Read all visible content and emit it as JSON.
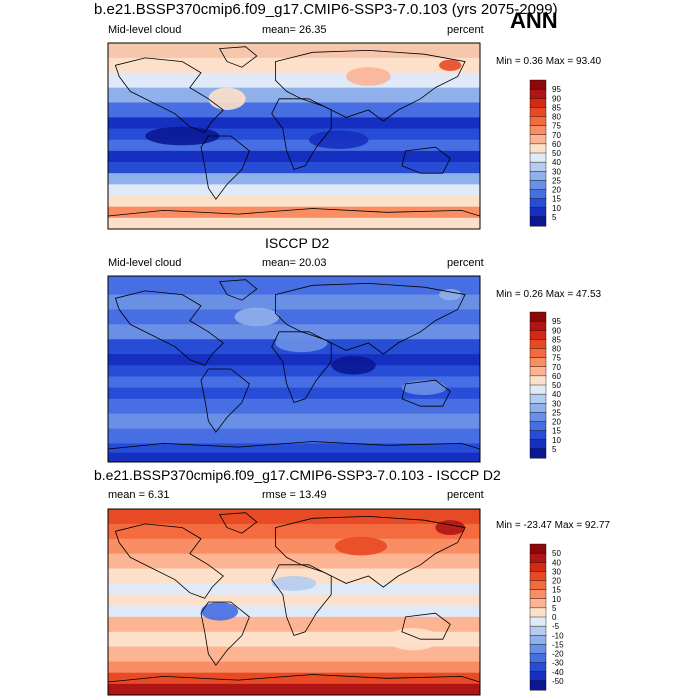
{
  "header": {
    "season": "ANN"
  },
  "chart_data": [
    {
      "type": "heatmap",
      "title": "b.e21.BSSP370cmip6.f09_g17.CMIP6-SSP3-7.0.103 (yrs 2075-2099)",
      "left_label": "Mid-level cloud",
      "stat_text": "mean=  26.35",
      "units": "percent",
      "minmax_text": "Min =   0.36 Max =  93.40",
      "colorbar_levels": [
        "95",
        "90",
        "85",
        "80",
        "75",
        "70",
        "60",
        "50",
        "40",
        "30",
        "25",
        "20",
        "15",
        "10",
        "5"
      ],
      "colorbar_colors": [
        "#8c0a0a",
        "#b01515",
        "#d42a15",
        "#e84a25",
        "#f36b3e",
        "#f98e64",
        "#fcb493",
        "#fde0c9",
        "#dfe9f7",
        "#b6ccee",
        "#8fb0ea",
        "#6a90e6",
        "#476ee2",
        "#274dd7",
        "#1530c0",
        "#0a1896"
      ]
    },
    {
      "type": "heatmap",
      "title": "ISCCP D2",
      "left_label": "Mid-level cloud",
      "stat_text": "mean=  20.03",
      "units": "percent",
      "minmax_text": "Min =   0.26 Max =  47.53",
      "colorbar_levels": [
        "95",
        "90",
        "85",
        "80",
        "75",
        "70",
        "60",
        "50",
        "40",
        "30",
        "25",
        "20",
        "15",
        "10",
        "5"
      ],
      "colorbar_colors": [
        "#8c0a0a",
        "#b01515",
        "#d42a15",
        "#e84a25",
        "#f36b3e",
        "#f98e64",
        "#fcb493",
        "#fde0c9",
        "#dfe9f7",
        "#b6ccee",
        "#8fb0ea",
        "#6a90e6",
        "#476ee2",
        "#274dd7",
        "#1530c0",
        "#0a1896"
      ]
    },
    {
      "type": "heatmap",
      "title": "b.e21.BSSP370cmip6.f09_g17.CMIP6-SSP3-7.0.103 - ISCCP D2",
      "left_label": "mean =   6.31",
      "stat_text": "rmse =  13.49",
      "units": "percent",
      "minmax_text": "Min = -23.47 Max =  92.77",
      "colorbar_levels": [
        "50",
        "40",
        "30",
        "20",
        "15",
        "10",
        "5",
        "0",
        "-5",
        "-10",
        "-15",
        "-20",
        "-30",
        "-40",
        "-50"
      ],
      "colorbar_colors": [
        "#8c0a0a",
        "#b01515",
        "#d42a15",
        "#e84a25",
        "#f36b3e",
        "#f98e64",
        "#fcb493",
        "#fde0c9",
        "#dfe9f7",
        "#b6ccee",
        "#8fb0ea",
        "#6a90e6",
        "#476ee2",
        "#274dd7",
        "#1530c0",
        "#0a1896"
      ]
    }
  ]
}
